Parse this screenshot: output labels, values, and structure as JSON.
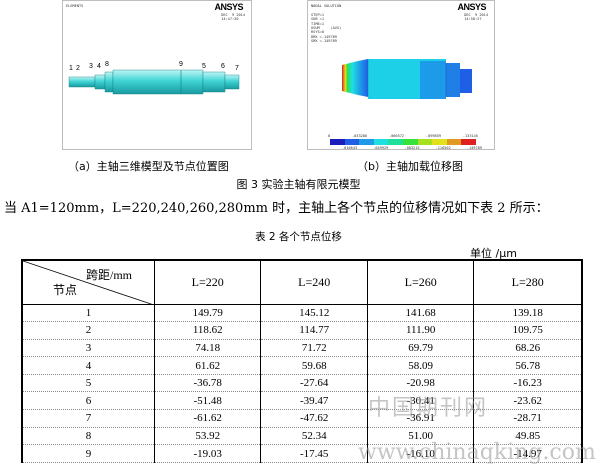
{
  "figure": {
    "panel_a": {
      "logo": "ANSYS",
      "header_left": "ELEMENTS",
      "header_right": "DEC  9 2014\n14:47:30",
      "node_labels": [
        "1",
        "2",
        "3",
        "4",
        "5",
        "6",
        "7",
        "8",
        "9"
      ],
      "caption": "（a）主轴三维模型及节点位置图"
    },
    "panel_b": {
      "logo": "ANSYS",
      "header_left": "NODAL SOLUTION\n\nSTEP=1\nSUB =1\nTIME=1\nUSUM     (AVG)\nRSYS=0\nDMX =.149789\nSMX =.149789",
      "header_right": "DEC  9 2014\n14:58:27",
      "legend_top": [
        "0",
        ".033286",
        ".066572",
        ".099859",
        ".133145"
      ],
      "legend_bottom": [
        ".016643",
        ".049929",
        ".083215",
        ".116502",
        ".149789"
      ],
      "legend_colors": [
        "#1d1dbe",
        "#1f5fe6",
        "#1e9be8",
        "#1ee0e0",
        "#1fe09a",
        "#38e03a",
        "#a6e01f",
        "#e0e01f",
        "#e09a1f",
        "#e01f1f"
      ],
      "caption": "（b）主轴加载位移图"
    },
    "title": "图 3  实验主轴有限元模型"
  },
  "paragraph": "当 A1=120mm，L=220,240,260,280mm 时，主轴上各个节点的位移情况如下表 2 所示：",
  "table": {
    "title": "表 2  各个节点位移",
    "unit": "单位 /μm",
    "header_top": "跨距/mm",
    "header_bottom": "节点",
    "columns": [
      "L=220",
      "L=240",
      "L=260",
      "L=280"
    ],
    "rows": [
      {
        "node": "1",
        "values": [
          "149.79",
          "145.12",
          "141.68",
          "139.18"
        ]
      },
      {
        "node": "2",
        "values": [
          "118.62",
          "114.77",
          "111.90",
          "109.75"
        ]
      },
      {
        "node": "3",
        "values": [
          "74.18",
          "71.72",
          "69.79",
          "68.26"
        ]
      },
      {
        "node": "4",
        "values": [
          "61.62",
          "59.68",
          "58.09",
          "56.78"
        ]
      },
      {
        "node": "5",
        "values": [
          "-36.78",
          "-27.64",
          "-20.98",
          "-16.23"
        ]
      },
      {
        "node": "6",
        "values": [
          "-51.48",
          "-39.47",
          "-30.41",
          "-23.62"
        ]
      },
      {
        "node": "7",
        "values": [
          "-61.62",
          "-47.62",
          "-36.91",
          "-28.71"
        ]
      },
      {
        "node": "8",
        "values": [
          "53.92",
          "52.34",
          "51.00",
          "49.85"
        ]
      },
      {
        "node": "9",
        "values": [
          "-19.03",
          "-17.45",
          "-16.10",
          "-14.97"
        ]
      }
    ]
  },
  "watermark": {
    "text_cn": "中国期刊网",
    "url": "www.chinaqking.com"
  }
}
